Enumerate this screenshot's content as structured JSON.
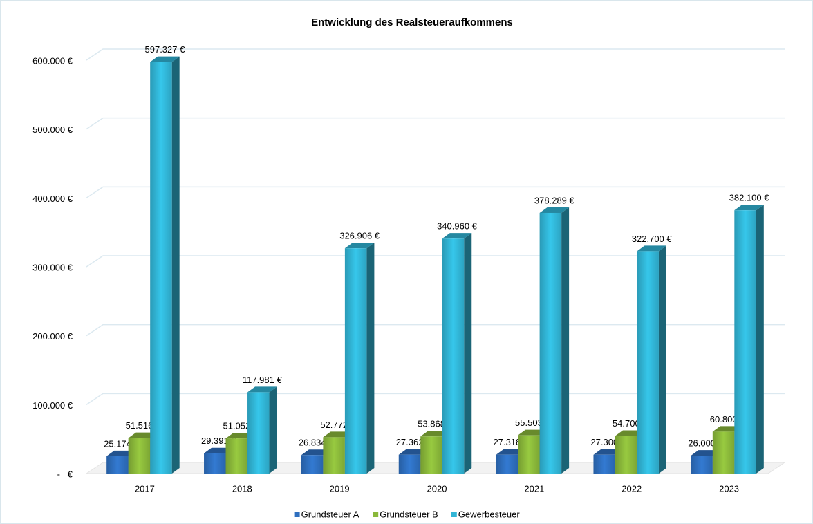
{
  "chart_data": {
    "type": "bar3d",
    "title": "Entwicklung des Realsteueraufkommens",
    "categories": [
      "2017",
      "2018",
      "2019",
      "2020",
      "2021",
      "2022",
      "2023"
    ],
    "series": [
      {
        "name": "Grundsteuer A",
        "color": "#2e6fbf",
        "values": [
          25174,
          29391,
          26834,
          27362,
          27318,
          27300,
          26000
        ],
        "value_labels": [
          "25.174 €",
          "29.391 €",
          "26.834 €",
          "27.362 €",
          "27.318 €",
          "27.300 €",
          "26.000 €"
        ]
      },
      {
        "name": "Grundsteuer B",
        "color": "#8ab83a",
        "values": [
          51516,
          51052,
          52772,
          53868,
          55503,
          54700,
          60800
        ],
        "value_labels": [
          "51.516 €",
          "51.052 €",
          "52.772 €",
          "53.868 €",
          "55.503 €",
          "54.700 €",
          "60.800 €"
        ]
      },
      {
        "name": "Gewerbesteuer",
        "color": "#31b5d6",
        "values": [
          597327,
          117981,
          326906,
          340960,
          378289,
          322700,
          382100
        ],
        "value_labels": [
          "597.327 €",
          "117.981 €",
          "326.906 €",
          "340.960 €",
          "378.289 €",
          "322.700 €",
          "382.100 €"
        ]
      }
    ],
    "ylim": [
      0,
      600000
    ],
    "yticks": [
      {
        "value": 0,
        "label": "-   €"
      },
      {
        "value": 100000,
        "label": "100.000 €"
      },
      {
        "value": 200000,
        "label": "200.000 €"
      },
      {
        "value": 300000,
        "label": "300.000 €"
      },
      {
        "value": 400000,
        "label": "400.000 €"
      },
      {
        "value": 500000,
        "label": "500.000 €"
      },
      {
        "value": 600000,
        "label": "600.000 €"
      }
    ],
    "grid": true,
    "legend": "bottom"
  }
}
